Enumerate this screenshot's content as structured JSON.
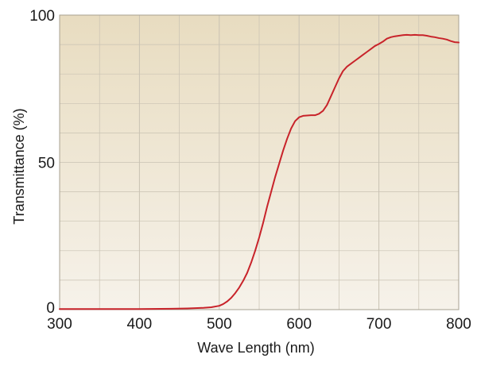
{
  "chart_data": {
    "type": "line",
    "title": "",
    "xlabel": "Wave Length (nm)",
    "ylabel": "Transmittance (%)",
    "xlim": [
      300,
      800
    ],
    "ylim": [
      0,
      100
    ],
    "x_ticks": [
      300,
      400,
      500,
      600,
      700,
      800
    ],
    "y_ticks": [
      0,
      50,
      100
    ],
    "x_tick_labels": [
      "300",
      "400",
      "500",
      "600",
      "700",
      "800"
    ],
    "y_tick_labels": [
      "0",
      "50",
      "100"
    ],
    "grid": true,
    "legend": "none",
    "colors": {
      "line": "#c8232a",
      "background_top": "#e8dcc0",
      "background_bottom": "#f6f2ea",
      "grid": "#c9c2b3",
      "frame": "#a7a091"
    },
    "series": [
      {
        "x": [
          300,
          350,
          400,
          440,
          460,
          480,
          490,
          500,
          505,
          510,
          515,
          520,
          525,
          530,
          535,
          540,
          545,
          550,
          555,
          560,
          565,
          570,
          575,
          580,
          585,
          590,
          595,
          600,
          605,
          610,
          615,
          620,
          625,
          630,
          635,
          640,
          645,
          650,
          655,
          660,
          665,
          670,
          675,
          680,
          685,
          690,
          695,
          700,
          705,
          710,
          715,
          720,
          725,
          730,
          735,
          740,
          745,
          750,
          755,
          760,
          765,
          770,
          775,
          780,
          785,
          790,
          795,
          800
        ],
        "y": [
          0.2,
          0.2,
          0.2,
          0.3,
          0.4,
          0.6,
          0.8,
          1.3,
          1.9,
          2.8,
          4.0,
          5.6,
          7.5,
          9.8,
          12.5,
          16.0,
          20.0,
          24.5,
          29.5,
          35.0,
          40.0,
          45.0,
          49.5,
          54.0,
          58.0,
          61.5,
          64.0,
          65.3,
          65.8,
          65.9,
          66.0,
          66.0,
          66.5,
          67.5,
          69.5,
          72.5,
          75.5,
          78.5,
          81.0,
          82.5,
          83.5,
          84.5,
          85.5,
          86.5,
          87.5,
          88.5,
          89.5,
          90.2,
          91.0,
          92.0,
          92.5,
          92.8,
          93.0,
          93.2,
          93.3,
          93.2,
          93.3,
          93.2,
          93.2,
          93.0,
          92.7,
          92.5,
          92.2,
          92.0,
          91.7,
          91.2,
          90.8,
          90.7
        ]
      }
    ]
  }
}
